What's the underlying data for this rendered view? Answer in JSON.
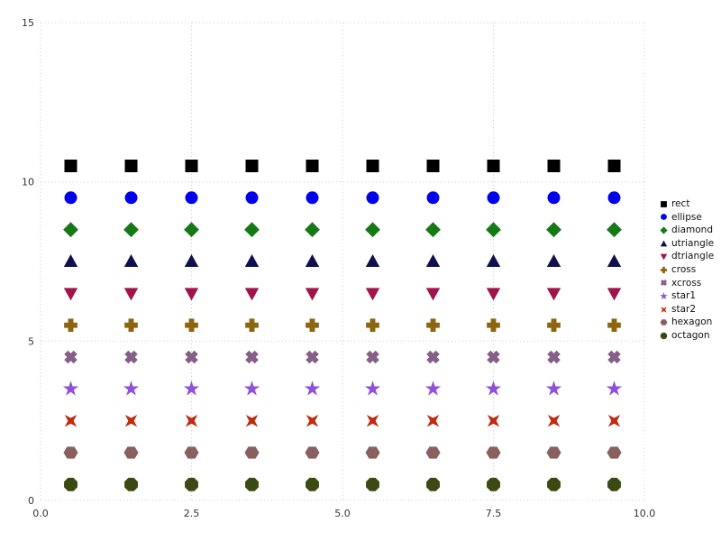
{
  "chart_data": {
    "type": "scatter",
    "title": "",
    "xlabel": "",
    "ylabel": "",
    "x": [
      0.5,
      1.5,
      2.5,
      3.5,
      4.5,
      5.5,
      6.5,
      7.5,
      8.5,
      9.5
    ],
    "series": [
      {
        "name": "rect",
        "shape": "rect",
        "color": "#000000",
        "y": 10.5
      },
      {
        "name": "ellipse",
        "shape": "ellipse",
        "color": "#0000ee",
        "y": 9.5
      },
      {
        "name": "diamond",
        "shape": "diamond",
        "color": "#157915",
        "y": 8.5
      },
      {
        "name": "utriangle",
        "shape": "utriangle",
        "color": "#10104f",
        "y": 7.5
      },
      {
        "name": "dtriangle",
        "shape": "dtriangle",
        "color": "#a0144b",
        "y": 6.5
      },
      {
        "name": "cross",
        "shape": "cross",
        "color": "#8c6510",
        "y": 5.5
      },
      {
        "name": "xcross",
        "shape": "xcross",
        "color": "#865f86",
        "y": 4.5
      },
      {
        "name": "star1",
        "shape": "star1",
        "color": "#9050d8",
        "y": 3.5
      },
      {
        "name": "star2",
        "shape": "star2",
        "color": "#bf2c0f",
        "y": 2.5
      },
      {
        "name": "hexagon",
        "shape": "hexagon",
        "color": "#8a5f5f",
        "y": 1.5
      },
      {
        "name": "octagon",
        "shape": "octagon",
        "color": "#3b4a12",
        "y": 0.5
      }
    ],
    "xlim": [
      0,
      10
    ],
    "ylim": [
      0,
      15
    ],
    "xticks": [
      0,
      2.5,
      5,
      7.5,
      10
    ],
    "xtick_labels": [
      "0.0",
      "2.5",
      "5.0",
      "7.5",
      "10.0"
    ],
    "yticks": [
      0,
      5,
      10,
      15
    ],
    "ytick_labels": [
      "0",
      "5",
      "10",
      "15"
    ],
    "grid": "dotted",
    "grid_color": "#cccccc",
    "tick_color": "#333333",
    "background": "#ffffff",
    "legend_position": "right",
    "legend_labels": [
      "rect",
      "ellipse",
      "diamond",
      "utriangle",
      "dtriangle",
      "cross",
      "xcross",
      "star1",
      "star2",
      "hexagon",
      "octagon"
    ]
  }
}
